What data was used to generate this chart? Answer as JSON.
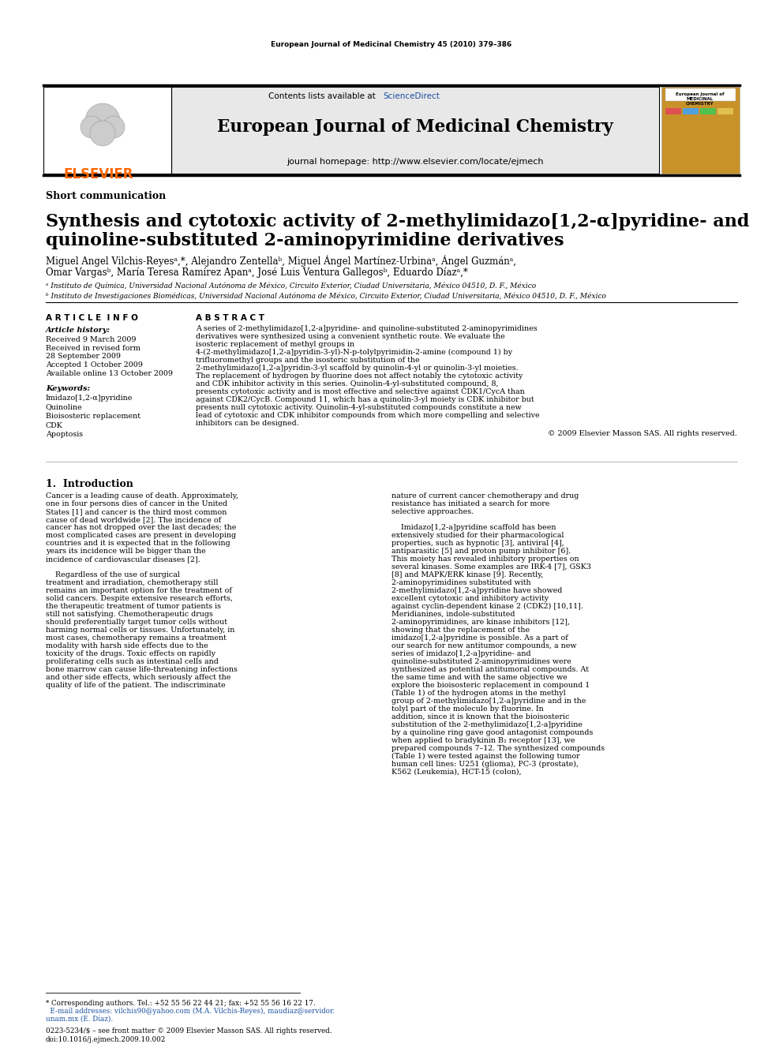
{
  "page_bg": "#ffffff",
  "header_journal": "European Journal of Medicinal Chemistry 45 (2010) 379–386",
  "header_banner_bg": "#e8e8e8",
  "contents_text": "Contents lists available at ",
  "sciencedirect_text": "ScienceDirect",
  "sciencedirect_color": "#1a4fa0",
  "journal_title": "European Journal of Medicinal Chemistry",
  "journal_homepage": "journal homepage: http://www.elsevier.com/locate/ejmech",
  "elsevier_color": "#ff6600",
  "article_type": "Short communication",
  "paper_title_line1": "Synthesis and cytotoxic activity of 2-methylimidazo[1,2-α]pyridine- and",
  "paper_title_line2": "quinoline-substituted 2-aminopyrimidine derivatives",
  "authors_line1": "Miguel Angel Vilchis-Reyesᵃ,*, Alejandro Zentellaᵇ, Miguel Ángel Martínez-Urbinaᵃ, Ángel Guzmánᵃ,",
  "authors_line2": "Omar Vargasᵇ, María Teresa Ramírez Apanᵃ, José Luis Ventura Gallegosᵇ, Eduardo Díazᵃ,*",
  "affil_a": "ᵃ Instituto de Química, Universidad Nacional Autónoma de México, Circuito Exterior, Ciudad Universitaria, México 04510, D. F., México",
  "affil_b": "ᵇ Instituto de Investigaciones Biomédicas, Universidad Nacional Autónoma de México, Circuito Exterior, Ciudad Universitaria, México 04510, D. F., México",
  "article_info_title": "A R T I C L E  I N F O",
  "article_history_title": "Article history:",
  "received": "Received 9 March 2009",
  "revised1": "Received in revised form",
  "revised2": "28 September 2009",
  "accepted": "Accepted 1 October 2009",
  "available": "Available online 13 October 2009",
  "keywords_title": "Keywords:",
  "keywords": [
    "Imidazo[1,2-α]pyridine",
    "Quinoline",
    "Bioisosteric replacement",
    "CDK",
    "Apoptosis"
  ],
  "abstract_title": "A B S T R A C T",
  "abstract_text": "A series of 2-methylimidazo[1,2-a]pyridine- and quinoline-substituted 2-aminopyrimidines derivatives were synthesized using a convenient synthetic route. We evaluate the isosteric replacement of methyl groups in 4-(2-methylimidazo[1,2-a]pyridin-3-yl)-N-p-tolylpyrimidin-2-amine (compound 1) by trifluoromethyl groups and the isosteric substitution of the 2-methylimidazo[1,2-a]pyridin-3-yl scaffold by quinolin-4-yl or quinolin-3-yl moieties. The replacement of hydrogen by fluorine does not affect notably the cytotoxic activity and CDK inhibitor activity in this series. Quinolin-4-yl-substituted compound, 8, presents cytotoxic activity and is most effective and selective against CDK1/CycA than against CDK2/CycB. Compound 11, which has a quinolin-3-yl moiety is CDK inhibitor but presents null cytotoxic activity. Quinolin-4-yl-substituted compounds constitute a new lead of cytotoxic and CDK inhibitor compounds from which more compelling and selective inhibitors can be designed.",
  "copyright": "© 2009 Elsevier Masson SAS. All rights reserved.",
  "intro_title": "1.  Introduction",
  "intro_col1_para1": "Cancer is a leading cause of death. Approximately, one in four persons dies of cancer in the United States [1] and cancer is the third most common cause of dead worldwide [2]. The incidence of cancer has not dropped over the last decades; the most complicated cases are present in developing countries and it is expected that in the following years its incidence will be bigger than the incidence of cardiovascular diseases [2].",
  "intro_col1_para2": "Regardless of the use of surgical treatment and irradiation, chemotherapy still remains an important option for the treatment of solid cancers. Despite extensive research efforts, the therapeutic treatment of tumor patients is still not satisfying. Chemotherapeutic drugs should preferentially target tumor cells without harming normal cells or tissues. Unfortunately, in most cases, chemotherapy remains a treatment modality with harsh side effects due to the toxicity of the drugs. Toxic effects on rapidly proliferating cells such as intestinal cells and bone marrow can cause life-threatening infections and other side effects, which seriously affect the quality of life of the patient. The indiscriminate",
  "intro_col2_para1": "nature of current cancer chemotherapy and drug resistance has initiated a search for more selective approaches.",
  "intro_col2_para2": "Imidazo[1,2-a]pyridine scaffold has been extensively studied for their pharmacological properties, such as hypnotic [3], antiviral [4], antiparasitic [5] and proton pump inhibitor [6]. This moiety has revealed inhibitory properties on several kinases. Some examples are IRK-4 [7], GSK3 [8] and MAPK/ERK kinase [9]. Recently, 2-aminopyrimidines substituted with 2-methylimidazo[1,2-a]pyridine have showed excellent cytotoxic and inhibitory activity against cyclin-dependent kinase 2 (CDK2) [10,11]. Meridianines, indole-substituted 2-aminopyrimidines, are kinase inhibitors [12], showing that the replacement of the imidazo[1,2-a]pyridine is possible. As a part of our search for new antitumor compounds, a new series of imidazo[1,2-a]pyridine- and quinoline-substituted 2-aminopyrimidines were synthesized as potential antitumoral compounds. At the same time and with the same objective we explore the bioisosteric replacement in compound 1 (Table 1) of the hydrogen atoms in the methyl group of 2-methylimidazo[1,2-a]pyridine and in the tolyl part of the molecule by fluorine. In addition, since it is known that the bioisosteric substitution of the 2-methylimidazo[1,2-a]pyridine by a quinoline ring gave good antagonist compounds when applied to bradykinin B₂ receptor [13], we prepared compounds 7–12. The synthesized compounds (Table 1) were tested against the following tumor human cell lines: U251 (glioma), PC-3 (prostate), K562 (Leukemia), HCT-15 (colon),",
  "footnote_star": "* Corresponding authors. Tel.: +52 55 56 22 44 21; fax: +52 55 56 16 22 17.",
  "footnote_email1": "  E-mail addresses: vilchis90@yahoo.com (M.A. Vilchis-Reyes), maudiaz@servidor.",
  "footnote_email2": "unam.mx (E. Díaz).",
  "issn_line1": "0223-5234/$ – see front matter © 2009 Elsevier Masson SAS. All rights reserved.",
  "issn_line2": "doi:10.1016/j.ejmech.2009.10.002"
}
